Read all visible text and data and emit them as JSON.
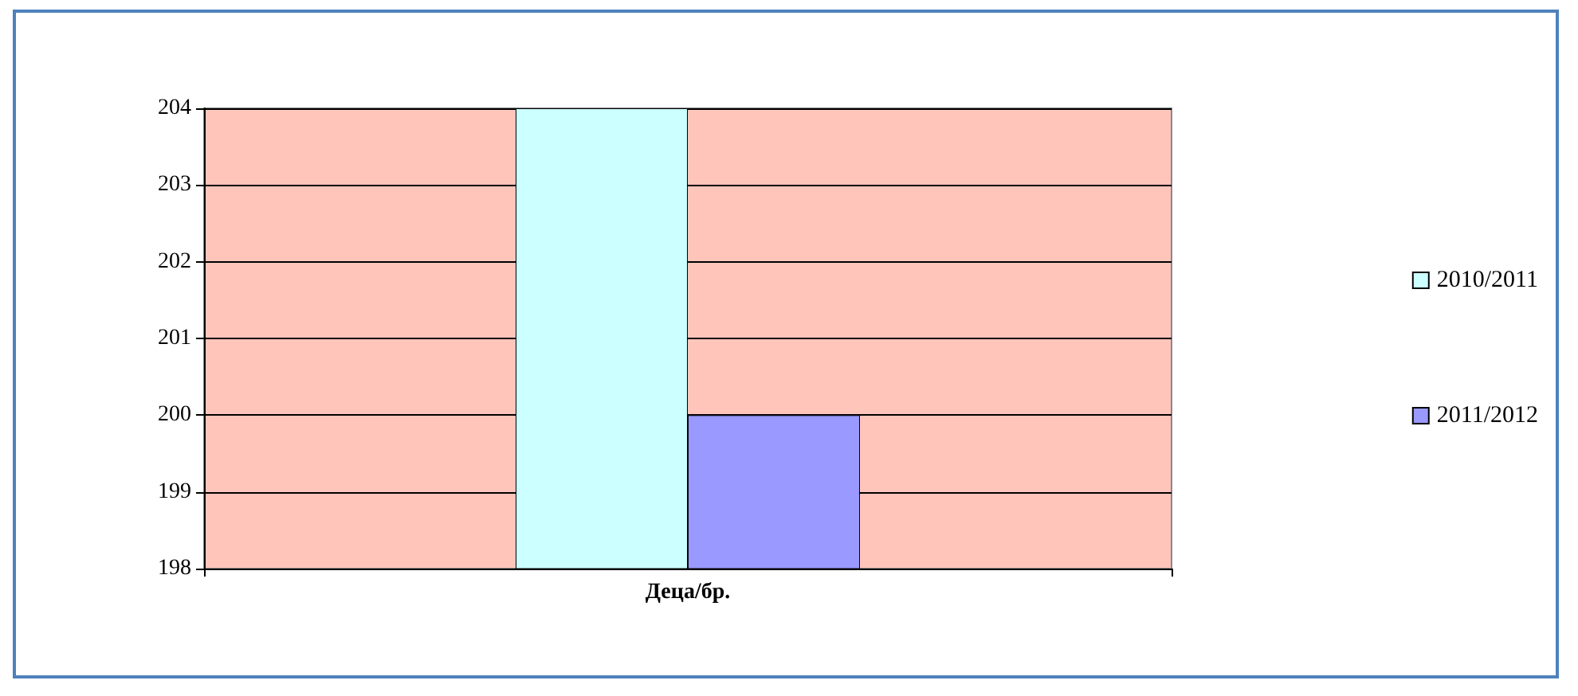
{
  "chart_data": {
    "type": "bar",
    "categories": [
      "Деца/бр."
    ],
    "series": [
      {
        "name": "2010/2011",
        "color": "#ccffff",
        "values": [
          204
        ]
      },
      {
        "name": "2011/2012",
        "color": "#9999ff",
        "values": [
          200
        ]
      }
    ],
    "ylim": [
      198,
      204
    ],
    "yticks": [
      198,
      199,
      200,
      201,
      202,
      203,
      204
    ],
    "grid": "y",
    "legend": "right"
  }
}
